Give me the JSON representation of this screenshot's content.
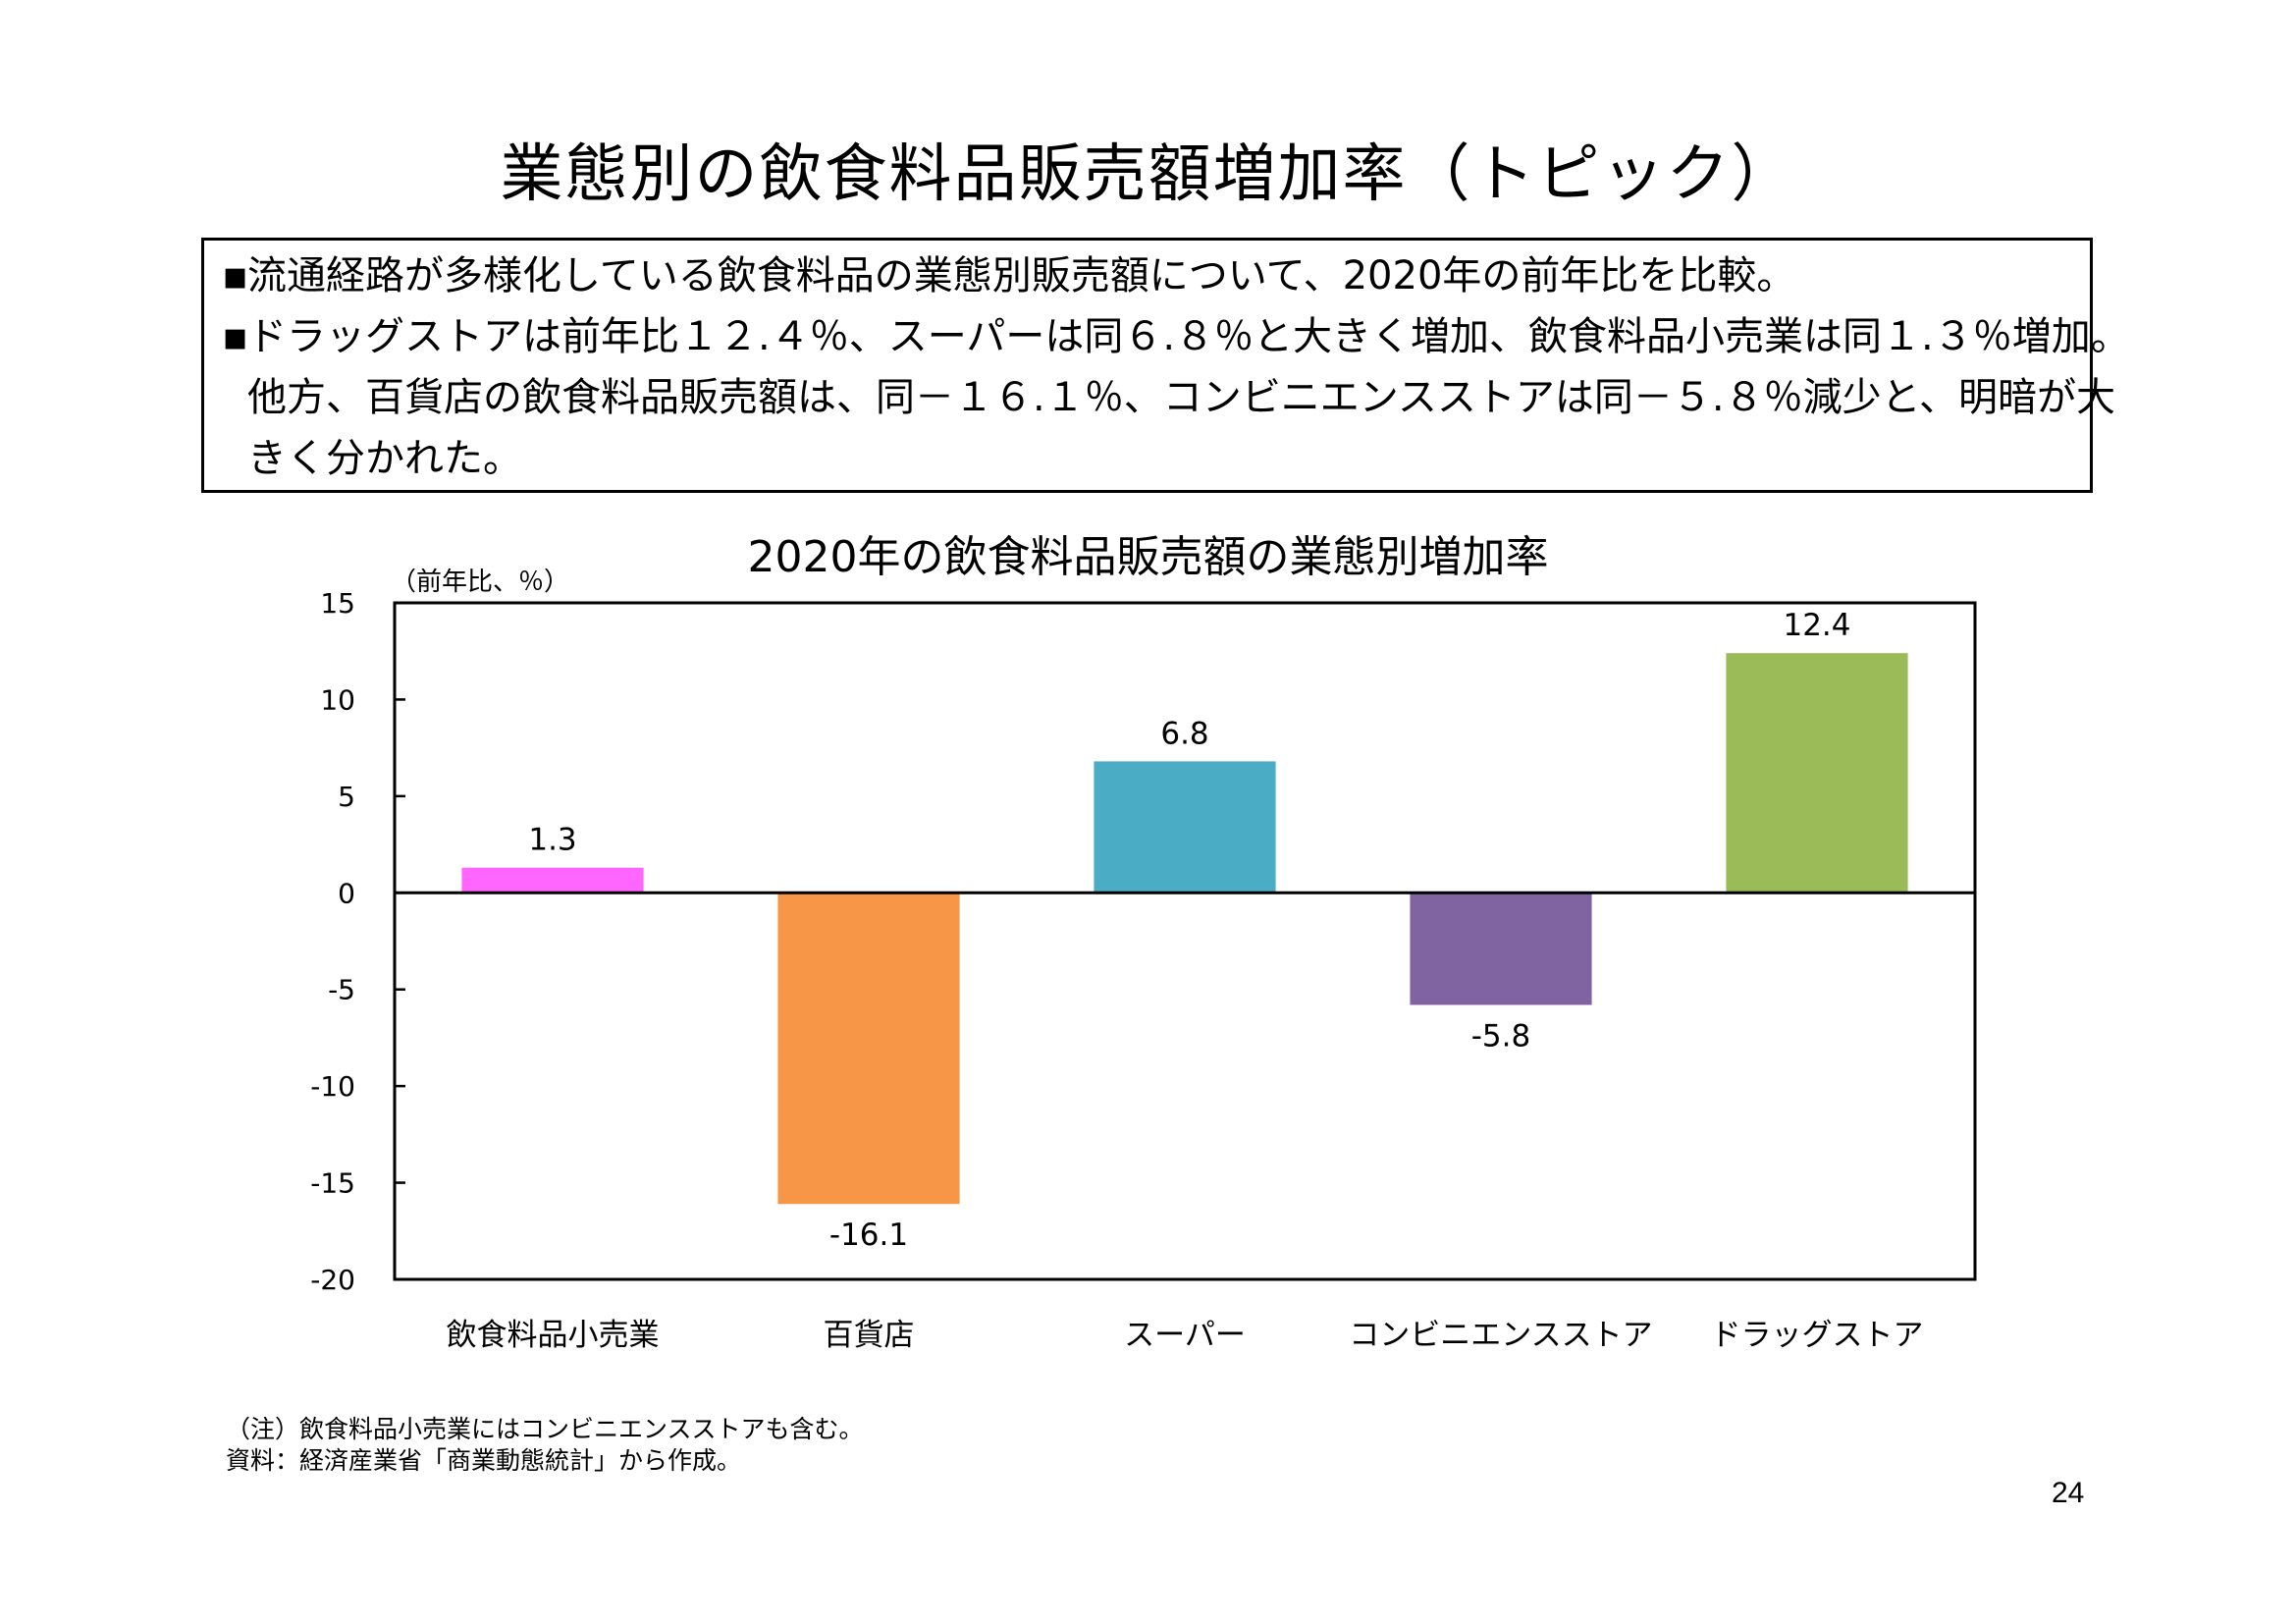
{
  "slide": {
    "title": "業態別の飲食料品販売額増加率（トピック）",
    "page_number": "24"
  },
  "summary": {
    "bullet_glyph": "▪",
    "lines": [
      "流通経路が多様化している飲食料品の業態別販売額について、2020年の前年比を比較。",
      "ドラッグストアは前年比１２.４％、スーパーは同６.８％と大きく増加、飲食料品小売業は同１.３％増加。",
      "他方、百貨店の飲食料品販売額は、同－１６.１％、コンビニエンスストアは同－５.８％減少と、明暗が大",
      "きく分かれた。"
    ]
  },
  "chart_data": {
    "type": "bar",
    "title": "2020年の飲食料品販売額の業態別増加率",
    "ylabel": "（前年比、％）",
    "xlabel": "",
    "categories": [
      "飲食料品小売業",
      "百貨店",
      "スーパー",
      "コンビニエンスストア",
      "ドラッグストア"
    ],
    "values": [
      1.3,
      -16.1,
      6.8,
      -5.8,
      12.4
    ],
    "value_labels": [
      "1.3",
      "-16.1",
      "6.8",
      "-5.8",
      "12.4"
    ],
    "colors": [
      "#FF66FF",
      "#F79646",
      "#4BACC6",
      "#8064A2",
      "#9BBB59"
    ],
    "ylim": [
      -20,
      15
    ],
    "yticks": [
      15,
      10,
      5,
      0,
      -5,
      -10,
      -15,
      -20
    ],
    "ytick_labels": [
      "15",
      "10",
      "5",
      "0",
      "-5",
      "-10",
      "-15",
      "-20"
    ],
    "grid": false,
    "legend": "none"
  },
  "notes": [
    "（注）飲食料品小売業にはコンビニエンスストアも含む。",
    "資料：経済産業省「商業動態統計」から作成。"
  ]
}
